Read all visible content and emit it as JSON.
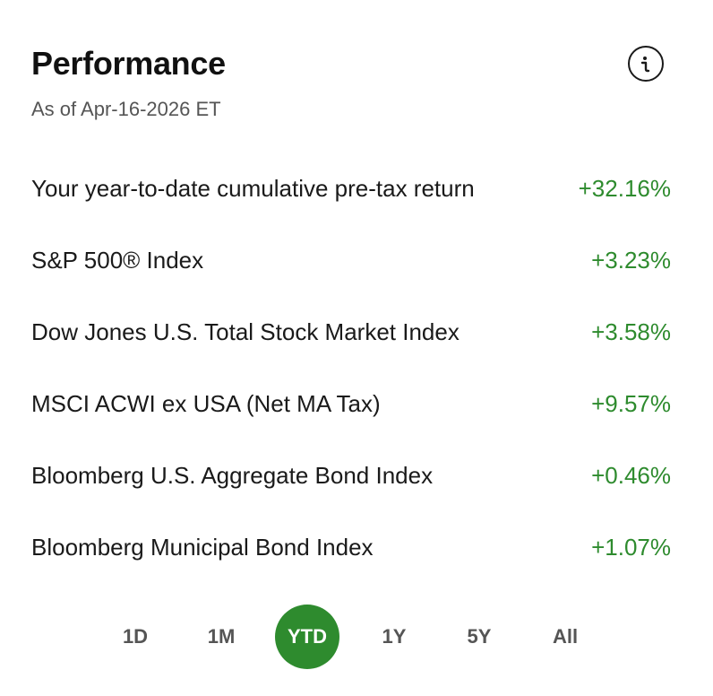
{
  "header": {
    "title": "Performance",
    "as_of": "As of Apr-16-2026 ET",
    "info_icon": "info-icon"
  },
  "rows": [
    {
      "label": "Your year-to-date cumulative pre-tax return",
      "value": "+32.16%"
    },
    {
      "label": "S&P 500® Index",
      "value": "+3.23%"
    },
    {
      "label": "Dow Jones U.S. Total Stock Market Index",
      "value": "+3.58%"
    },
    {
      "label": "MSCI ACWI ex USA (Net MA Tax)",
      "value": "+9.57%"
    },
    {
      "label": "Bloomberg U.S. Aggregate Bond Index",
      "value": "+0.46%"
    },
    {
      "label": "Bloomberg Municipal Bond Index",
      "value": "+1.07%"
    }
  ],
  "periods": {
    "options": [
      "1D",
      "1M",
      "YTD",
      "1Y",
      "5Y",
      "All"
    ],
    "selected": "YTD"
  },
  "colors": {
    "positive": "#2e8b2e",
    "accent": "#2e8b2e",
    "text": "#1a1a1a",
    "muted": "#555555"
  }
}
